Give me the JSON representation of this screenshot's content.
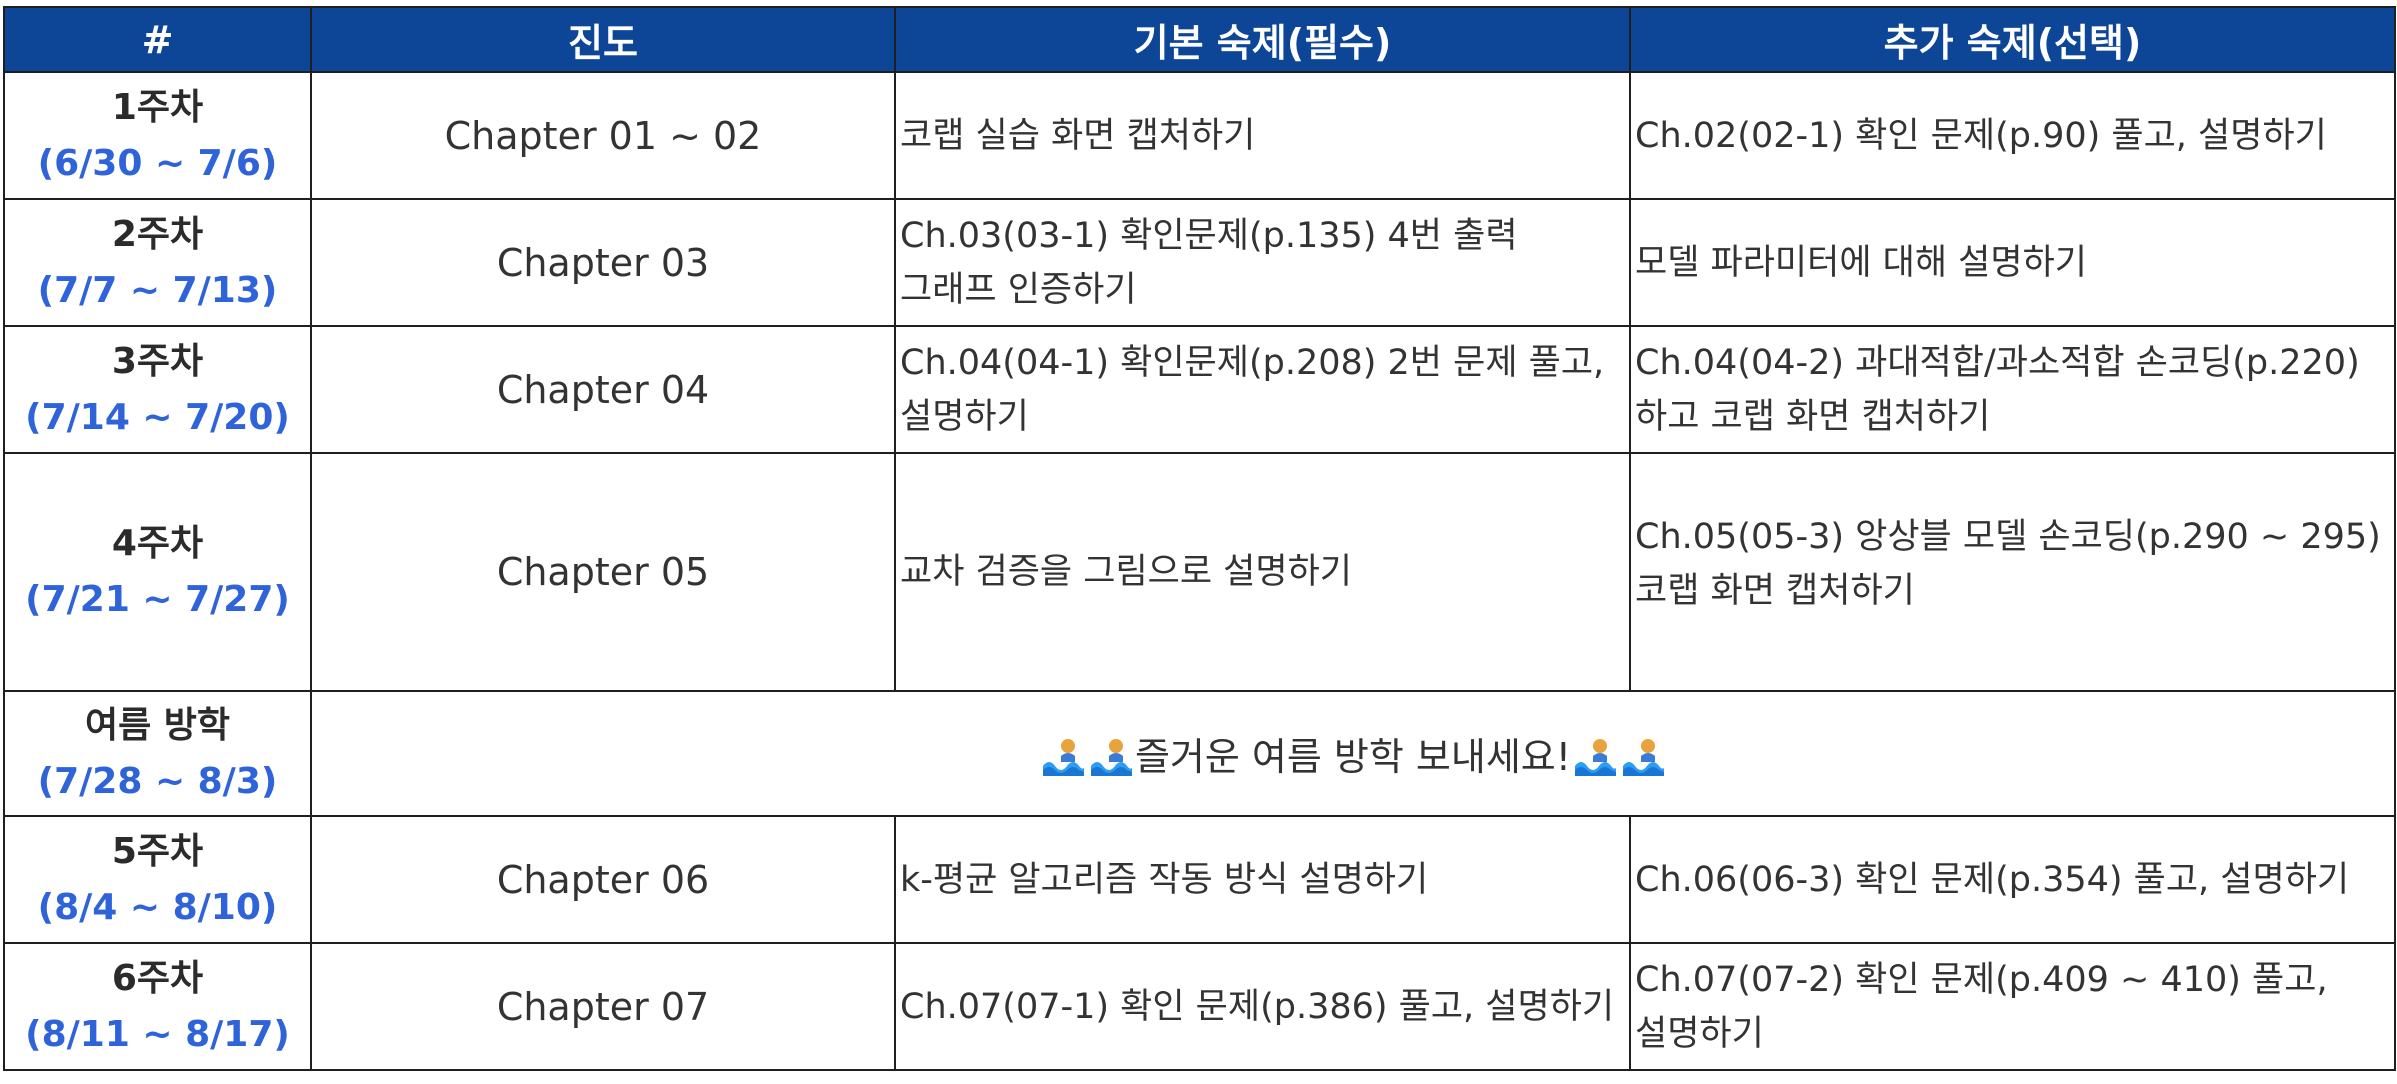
{
  "table": {
    "headers": [
      "#",
      "진도",
      "기본 숙제(필수)",
      "추가 숙제(선택)"
    ],
    "rows": [
      {
        "week": "1주차",
        "dates": "(6/30 ~ 7/6)",
        "chapter": "Chapter 01 ~ 02",
        "basic": "코랩 실습 화면 캡처하기",
        "extra": "Ch.02(02-1) 확인 문제(p.90) 풀고, 설명하기"
      },
      {
        "week": "2주차",
        "dates": "(7/7 ~ 7/13)",
        "chapter": "Chapter 03",
        "basic": "Ch.03(03-1) 확인문제(p.135) 4번 출력 그래프 인증하기",
        "extra": "모델 파라미터에 대해 설명하기"
      },
      {
        "week": "3주차",
        "dates": "(7/14 ~ 7/20)",
        "chapter": "Chapter 04",
        "basic": "Ch.04(04-1) 확인문제(p.208) 2번 문제 풀고, 설명하기",
        "extra": "Ch.04(04-2) 과대적합/과소적합 손코딩(p.220) 하고 코랩 화면 캡처하기"
      },
      {
        "week": "4주차",
        "dates": "(7/21 ~ 7/27)",
        "chapter": "Chapter 05",
        "basic": "교차 검증을 그림으로 설명하기",
        "extra": "Ch.05(05-3) 앙상블 모델 손코딩(p.290 ~ 295) 코랩 화면 캡처하기"
      }
    ],
    "vacation": {
      "week": "여름 방학",
      "dates": "(7/28 ~ 8/3)",
      "message": "즐거운 여름 방학 보내세요!",
      "icon": "water-wave-person-icon"
    },
    "rows_after": [
      {
        "week": "5주차",
        "dates": "(8/4 ~ 8/10)",
        "chapter": "Chapter 06",
        "basic": "k-평균 알고리즘 작동 방식 설명하기",
        "extra": "Ch.06(06-3) 확인 문제(p.354) 풀고, 설명하기"
      },
      {
        "week": "6주차",
        "dates": "(8/11 ~ 8/17)",
        "chapter": "Chapter 07",
        "basic": "Ch.07(07-1) 확인 문제(p.386) 풀고, 설명하기",
        "extra": "Ch.07(07-2) 확인 문제(p.409 ~ 410) 풀고, 설명하기"
      }
    ]
  },
  "colors": {
    "header_bg": "#0d4597",
    "header_text": "#ffffff",
    "date_text": "#2f63d9",
    "border": "#1f1f1f"
  }
}
